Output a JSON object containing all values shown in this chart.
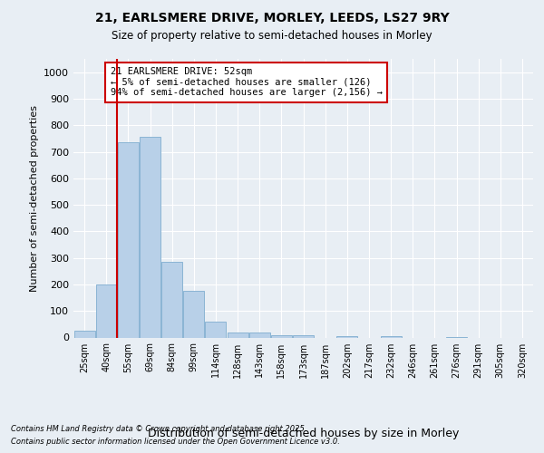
{
  "title_line1": "21, EARLSMERE DRIVE, MORLEY, LEEDS, LS27 9RY",
  "title_line2": "Size of property relative to semi-detached houses in Morley",
  "xlabel": "Distribution of semi-detached houses by size in Morley",
  "ylabel": "Number of semi-detached properties",
  "categories": [
    "25sqm",
    "40sqm",
    "55sqm",
    "69sqm",
    "84sqm",
    "99sqm",
    "114sqm",
    "128sqm",
    "143sqm",
    "158sqm",
    "173sqm",
    "187sqm",
    "202sqm",
    "217sqm",
    "232sqm",
    "246sqm",
    "261sqm",
    "276sqm",
    "291sqm",
    "305sqm",
    "320sqm"
  ],
  "values": [
    25,
    200,
    735,
    755,
    285,
    175,
    60,
    20,
    18,
    10,
    10,
    0,
    5,
    0,
    5,
    0,
    0,
    3,
    0,
    0,
    0
  ],
  "bar_color": "#b8d0e8",
  "bar_edge_color": "#8ab4d4",
  "vline_color": "#cc0000",
  "vline_index": 1.5,
  "annotation_text": "21 EARLSMERE DRIVE: 52sqm\n← 5% of semi-detached houses are smaller (126)\n94% of semi-detached houses are larger (2,156) →",
  "annotation_box_color": "#ffffff",
  "annotation_box_edge": "#cc0000",
  "ylim": [
    0,
    1050
  ],
  "yticks": [
    0,
    100,
    200,
    300,
    400,
    500,
    600,
    700,
    800,
    900,
    1000
  ],
  "footer_line1": "Contains HM Land Registry data © Crown copyright and database right 2025.",
  "footer_line2": "Contains public sector information licensed under the Open Government Licence v3.0.",
  "background_color": "#e8eef4",
  "plot_bg_color": "#e8eef4"
}
